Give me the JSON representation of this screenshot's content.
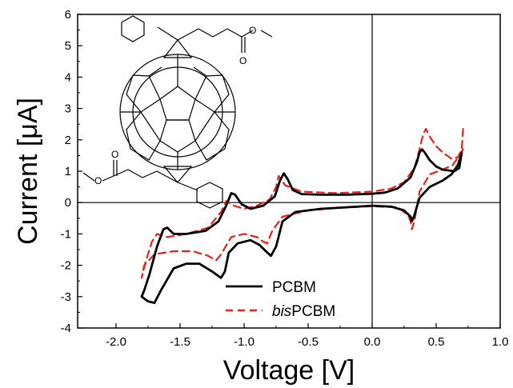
{
  "chart_data": {
    "type": "line",
    "xlabel": "Voltage [V]",
    "ylabel": "Current [μA]",
    "xlim": [
      -2.3,
      1.0
    ],
    "ylim": [
      -4,
      6
    ],
    "xticks": [
      -2.0,
      -1.5,
      -1.0,
      -0.5,
      0.0,
      0.5,
      1.0
    ],
    "xtick_labels": [
      "-2.0",
      "-1.5",
      "-1.0",
      "-0.5",
      "0.0",
      "0.5",
      "1.0"
    ],
    "yticks": [
      -4,
      -3,
      -2,
      -1,
      0,
      1,
      2,
      3,
      4,
      5,
      6
    ],
    "ytick_labels": [
      "-4",
      "-3",
      "-2",
      "-1",
      "0",
      "1",
      "2",
      "3",
      "4",
      "5",
      "6"
    ],
    "zero_lines": true,
    "grid": false,
    "legend_position": "bottom-right",
    "series": [
      {
        "name": "PCBM",
        "name_parts": [
          {
            "text": "PCBM",
            "italic": false
          }
        ],
        "color": "#000000",
        "style": "solid",
        "points": [
          [
            0.7,
            1.6
          ],
          [
            0.68,
            1.1
          ],
          [
            0.64,
            1.0
          ],
          [
            0.55,
            1.05
          ],
          [
            0.5,
            1.15
          ],
          [
            0.45,
            1.35
          ],
          [
            0.41,
            1.6
          ],
          [
            0.39,
            1.7
          ],
          [
            0.37,
            1.6
          ],
          [
            0.35,
            1.3
          ],
          [
            0.3,
            0.8
          ],
          [
            0.2,
            0.45
          ],
          [
            0.1,
            0.32
          ],
          [
            0.0,
            0.28
          ],
          [
            -0.2,
            0.25
          ],
          [
            -0.4,
            0.25
          ],
          [
            -0.55,
            0.27
          ],
          [
            -0.62,
            0.4
          ],
          [
            -0.66,
            0.75
          ],
          [
            -0.69,
            0.93
          ],
          [
            -0.72,
            0.7
          ],
          [
            -0.76,
            0.2
          ],
          [
            -0.85,
            -0.1
          ],
          [
            -0.95,
            -0.2
          ],
          [
            -1.02,
            -0.05
          ],
          [
            -1.07,
            0.25
          ],
          [
            -1.1,
            0.3
          ],
          [
            -1.14,
            -0.1
          ],
          [
            -1.2,
            -0.6
          ],
          [
            -1.3,
            -0.9
          ],
          [
            -1.45,
            -1.0
          ],
          [
            -1.55,
            -1.0
          ],
          [
            -1.6,
            -0.8
          ],
          [
            -1.63,
            -0.85
          ],
          [
            -1.68,
            -1.4
          ],
          [
            -1.74,
            -2.3
          ],
          [
            -1.78,
            -2.8
          ],
          [
            -1.8,
            -3.0
          ],
          [
            -1.75,
            -3.15
          ],
          [
            -1.7,
            -3.2
          ],
          [
            -1.65,
            -2.8
          ],
          [
            -1.55,
            -2.1
          ],
          [
            -1.45,
            -1.95
          ],
          [
            -1.35,
            -1.95
          ],
          [
            -1.25,
            -2.2
          ],
          [
            -1.18,
            -2.4
          ],
          [
            -1.15,
            -2.2
          ],
          [
            -1.12,
            -1.6
          ],
          [
            -1.05,
            -1.3
          ],
          [
            -0.95,
            -1.2
          ],
          [
            -0.88,
            -1.35
          ],
          [
            -0.83,
            -1.55
          ],
          [
            -0.79,
            -1.7
          ],
          [
            -0.75,
            -1.4
          ],
          [
            -0.7,
            -0.6
          ],
          [
            -0.6,
            -0.3
          ],
          [
            -0.4,
            -0.2
          ],
          [
            -0.2,
            -0.15
          ],
          [
            0.0,
            -0.1
          ],
          [
            0.15,
            -0.13
          ],
          [
            0.25,
            -0.25
          ],
          [
            0.3,
            -0.45
          ],
          [
            0.31,
            -0.6
          ],
          [
            0.33,
            -0.4
          ],
          [
            0.37,
            0.15
          ],
          [
            0.45,
            0.5
          ],
          [
            0.55,
            0.7
          ],
          [
            0.62,
            0.9
          ],
          [
            0.67,
            1.2
          ],
          [
            0.7,
            1.6
          ]
        ]
      },
      {
        "name": "bisPCBM",
        "name_parts": [
          {
            "text": "bis",
            "italic": true
          },
          {
            "text": "PCBM",
            "italic": false
          }
        ],
        "color": "#e8201a",
        "style": "dashed",
        "points": [
          [
            0.71,
            2.35
          ],
          [
            0.7,
            1.7
          ],
          [
            0.67,
            1.45
          ],
          [
            0.62,
            1.4
          ],
          [
            0.55,
            1.6
          ],
          [
            0.5,
            1.8
          ],
          [
            0.45,
            2.1
          ],
          [
            0.42,
            2.35
          ],
          [
            0.4,
            2.2
          ],
          [
            0.37,
            1.7
          ],
          [
            0.33,
            1.1
          ],
          [
            0.25,
            0.65
          ],
          [
            0.15,
            0.45
          ],
          [
            0.0,
            0.35
          ],
          [
            -0.3,
            0.3
          ],
          [
            -0.55,
            0.35
          ],
          [
            -0.68,
            0.55
          ],
          [
            -0.73,
            0.85
          ],
          [
            -0.75,
            0.5
          ],
          [
            -0.8,
            0.1
          ],
          [
            -0.9,
            -0.1
          ],
          [
            -1.0,
            -0.2
          ],
          [
            -1.08,
            -0.1
          ],
          [
            -1.14,
            0.05
          ],
          [
            -1.18,
            -0.3
          ],
          [
            -1.28,
            -0.8
          ],
          [
            -1.45,
            -1.0
          ],
          [
            -1.6,
            -1.1
          ],
          [
            -1.68,
            -1.0
          ],
          [
            -1.72,
            -1.25
          ],
          [
            -1.77,
            -1.9
          ],
          [
            -1.8,
            -2.4
          ],
          [
            -1.78,
            -2.0
          ],
          [
            -1.7,
            -1.65
          ],
          [
            -1.55,
            -1.55
          ],
          [
            -1.4,
            -1.55
          ],
          [
            -1.28,
            -1.7
          ],
          [
            -1.22,
            -1.85
          ],
          [
            -1.18,
            -1.65
          ],
          [
            -1.1,
            -1.1
          ],
          [
            -1.0,
            -1.0
          ],
          [
            -0.9,
            -1.1
          ],
          [
            -0.85,
            -1.25
          ],
          [
            -0.82,
            -1.3
          ],
          [
            -0.78,
            -0.9
          ],
          [
            -0.7,
            -0.45
          ],
          [
            -0.5,
            -0.25
          ],
          [
            -0.2,
            -0.15
          ],
          [
            0.0,
            -0.12
          ],
          [
            0.2,
            -0.15
          ],
          [
            0.28,
            -0.4
          ],
          [
            0.3,
            -0.6
          ],
          [
            0.31,
            -0.85
          ],
          [
            0.33,
            -0.6
          ],
          [
            0.37,
            0.35
          ],
          [
            0.45,
            0.9
          ],
          [
            0.55,
            1.05
          ],
          [
            0.63,
            1.2
          ],
          [
            0.68,
            1.5
          ],
          [
            0.71,
            1.7
          ]
        ]
      }
    ]
  }
}
